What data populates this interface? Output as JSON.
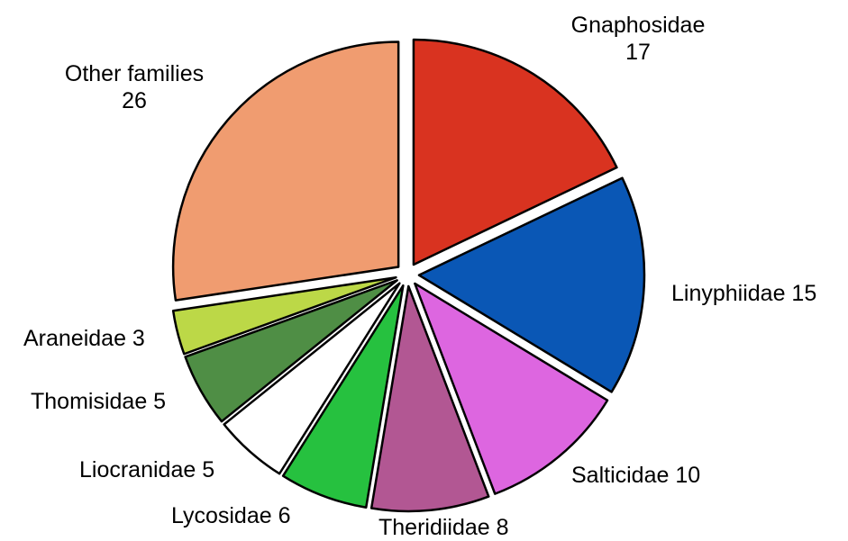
{
  "chart_data": {
    "type": "pie",
    "slices": [
      {
        "name": "Gnaphosidae",
        "value": 17,
        "value_label": "17",
        "color": "#d93320"
      },
      {
        "name": "Linyphiidae",
        "value": 15,
        "value_label": "15",
        "color": "#0a57b5"
      },
      {
        "name": "Salticidae",
        "value": 10,
        "value_label": "10",
        "color": "#dd66e0"
      },
      {
        "name": "Theridiidae",
        "value": 8,
        "value_label": "8",
        "color": "#b25793"
      },
      {
        "name": "Lycosidae",
        "value": 6,
        "value_label": "6",
        "color": "#26c13f"
      },
      {
        "name": "Liocranidae",
        "value": 5,
        "value_label": "5",
        "color": "#ffffff"
      },
      {
        "name": "Thomisidae",
        "value": 5,
        "value_label": "5",
        "color": "#4f8e45"
      },
      {
        "name": "Araneidae",
        "value": 3,
        "value_label": "3",
        "color": "#bcd847"
      },
      {
        "name": "Other families",
        "value": 26,
        "value_label": "26",
        "color": "#f09c70"
      }
    ],
    "start_angle_deg": 0,
    "direction": "clockwise",
    "exploded": true
  }
}
